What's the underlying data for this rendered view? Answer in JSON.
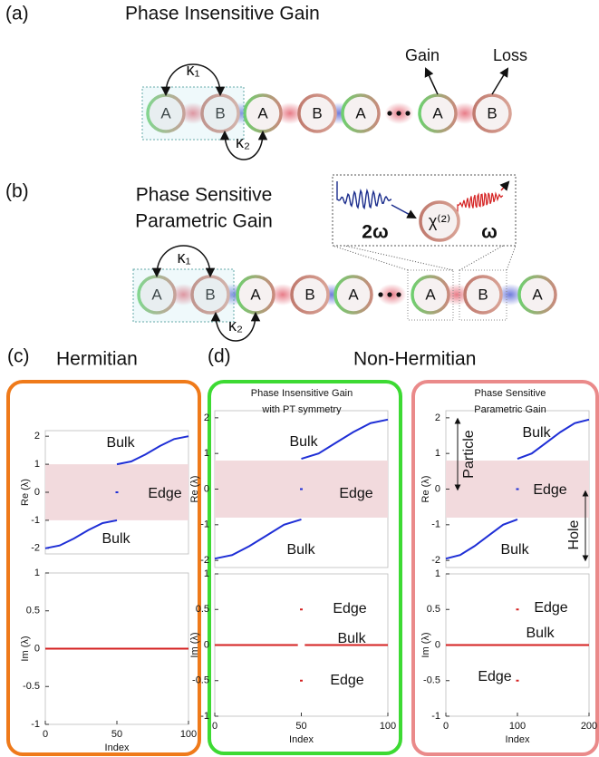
{
  "diagram_a": {
    "label": "(a)",
    "title": "Phase Insensitive Gain",
    "sites": [
      "A",
      "B",
      "A",
      "B",
      "A",
      "A",
      "B"
    ],
    "kappa_1": "κ₁",
    "kappa_2": "κ₂",
    "gain": "Gain",
    "loss": "Loss"
  },
  "diagram_b": {
    "label": "(b)",
    "title": [
      "Phase Sensitive",
      "Parametric Gain"
    ],
    "sites": [
      "A",
      "B",
      "A",
      "B",
      "A",
      "A",
      "B",
      "A"
    ],
    "kappa_1": "κ₁",
    "kappa_2": "κ₂",
    "pump": "2ω",
    "chi": "χ⁽²⁾",
    "signal": "ω"
  },
  "panel_c": {
    "label": "(c)",
    "title": "Hermitian"
  },
  "panel_d": {
    "label": "(d)",
    "title": "Non-Hermitian"
  },
  "chart_data": [
    {
      "type": "line",
      "ylabel": "Re (λ)",
      "xlim": [
        0,
        100
      ],
      "ylim": [
        -2.2,
        2.2
      ],
      "yticks": [
        -2,
        -1,
        0,
        1,
        2
      ],
      "band": [
        -1,
        1
      ],
      "band_color": "#f2dadd",
      "series": [
        {
          "color": "#1f2fd6",
          "x": [
            0,
            10,
            20,
            30,
            40,
            50
          ],
          "values": [
            -2,
            -1.9,
            -1.65,
            -1.35,
            -1.1,
            -1
          ]
        },
        {
          "color": "#1f2fd6",
          "x": [
            50,
            60,
            70,
            80,
            90,
            100
          ],
          "values": [
            1,
            1.1,
            1.35,
            1.65,
            1.9,
            2
          ]
        },
        {
          "color": "#1f2fd6",
          "mode": "markers",
          "x": [
            50
          ],
          "values": [
            0
          ]
        }
      ],
      "annotations": [
        "Bulk",
        "Edge",
        "Bulk"
      ]
    },
    {
      "type": "line",
      "ylabel": "Im (λ)",
      "xlabel": "Index",
      "xlim": [
        0,
        100
      ],
      "ylim": [
        -1,
        1
      ],
      "xticks": [
        0,
        50,
        100
      ],
      "yticks": [
        -1,
        -0.5,
        0,
        0.5,
        1
      ],
      "series": [
        {
          "color": "#d42020",
          "x": [
            0,
            100
          ],
          "values": [
            0,
            0
          ]
        }
      ],
      "annotations": []
    },
    {
      "type": "line",
      "title": [
        "Phase Insensitive Gain",
        "with PT symmetry"
      ],
      "ylabel": "Re (λ)",
      "xlim": [
        0,
        100
      ],
      "ylim": [
        -2.2,
        2.2
      ],
      "yticks": [
        -2,
        -1,
        0,
        1,
        2
      ],
      "band": [
        -0.8,
        0.8
      ],
      "band_color": "#f2dadd",
      "series": [
        {
          "color": "#1f2fd6",
          "x": [
            0,
            10,
            20,
            30,
            40,
            50
          ],
          "values": [
            -1.95,
            -1.85,
            -1.6,
            -1.3,
            -1,
            -0.85
          ]
        },
        {
          "color": "#1f2fd6",
          "x": [
            50,
            60,
            70,
            80,
            90,
            100
          ],
          "values": [
            0.85,
            1,
            1.3,
            1.6,
            1.85,
            1.95
          ]
        },
        {
          "color": "#1f2fd6",
          "mode": "markers",
          "x": [
            50
          ],
          "values": [
            0
          ]
        }
      ],
      "annotations": [
        "Bulk",
        "Edge",
        "Bulk"
      ]
    },
    {
      "type": "line",
      "ylabel": "Im (λ)",
      "xlabel": "Index",
      "xlim": [
        0,
        100
      ],
      "ylim": [
        -1,
        1
      ],
      "xticks": [
        0,
        50,
        100
      ],
      "yticks": [
        -1,
        -0.5,
        0,
        0.5,
        1
      ],
      "series": [
        {
          "color": "#d42020",
          "x": [
            0,
            48,
            50,
            52,
            100
          ],
          "values": [
            0,
            0,
            null,
            0,
            0
          ]
        },
        {
          "color": "#d42020",
          "mode": "markers",
          "x": [
            50,
            50
          ],
          "values": [
            0.5,
            -0.5
          ]
        }
      ],
      "annotations": [
        "Edge",
        "Bulk",
        "Edge"
      ]
    },
    {
      "type": "line",
      "title": [
        "Phase Sensitive",
        "Parametric Gain"
      ],
      "ylabel": "Re (λ)",
      "xlim": [
        0,
        200
      ],
      "ylim": [
        -2.2,
        2.2
      ],
      "yticks": [
        -2,
        -1,
        0,
        1,
        2
      ],
      "band": [
        -0.8,
        0.8
      ],
      "band_color": "#f2dadd",
      "series": [
        {
          "color": "#1f2fd6",
          "x": [
            0,
            20,
            40,
            60,
            80,
            100
          ],
          "values": [
            -1.95,
            -1.85,
            -1.6,
            -1.3,
            -1,
            -0.85
          ]
        },
        {
          "color": "#1f2fd6",
          "x": [
            100,
            120,
            140,
            160,
            180,
            200
          ],
          "values": [
            0.85,
            1,
            1.3,
            1.6,
            1.85,
            1.95
          ]
        },
        {
          "color": "#1f2fd6",
          "mode": "markers",
          "x": [
            100
          ],
          "values": [
            0
          ]
        }
      ],
      "annotations": [
        "Bulk",
        "Edge",
        "Bulk",
        "Particle",
        "Hole"
      ]
    },
    {
      "type": "line",
      "ylabel": "Im (λ)",
      "xlabel": "Index",
      "xlim": [
        0,
        200
      ],
      "ylim": [
        -1,
        1
      ],
      "xticks": [
        0,
        100,
        200
      ],
      "yticks": [
        -1,
        -0.5,
        0,
        0.5,
        1
      ],
      "series": [
        {
          "color": "#d42020",
          "x": [
            0,
            200
          ],
          "values": [
            0,
            0
          ]
        },
        {
          "color": "#d42020",
          "mode": "markers",
          "x": [
            100,
            100
          ],
          "values": [
            0.5,
            -0.5
          ]
        }
      ],
      "annotations": [
        "Edge",
        "Bulk",
        "Edge"
      ]
    }
  ]
}
